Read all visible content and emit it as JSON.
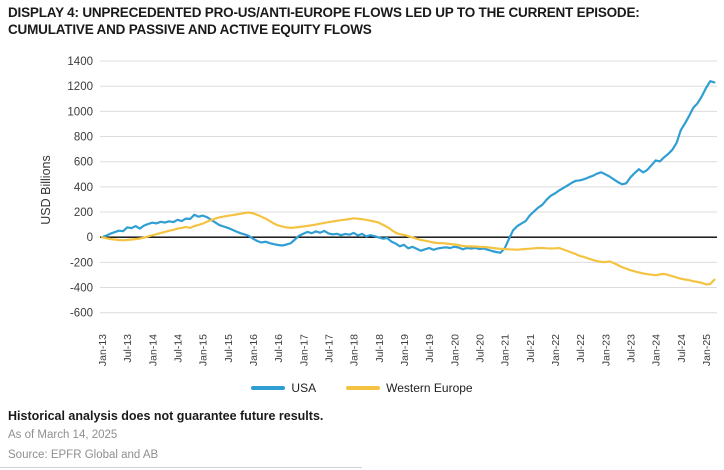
{
  "title_line1": "DISPLAY 4: UNPRECEDENTED PRO-US/ANTI-EUROPE FLOWS LED UP TO THE CURRENT EPISODE:",
  "title_line2": "CUMULATIVE AND PASSIVE AND ACTIVE EQUITY FLOWS",
  "footer": {
    "disclaimer": "Historical analysis does not guarantee future results.",
    "as_of": "As of March 14, 2025",
    "source": "Source: EPFR Global and AB"
  },
  "colors": {
    "usa_line": "#2f9ed2",
    "western_europe_line": "#f5c342",
    "gridline": "#dcdcdc",
    "zero_line": "#000000",
    "axis_text": "#3c3c3c",
    "footer_gray": "#8f8f8f"
  },
  "chart_data": {
    "type": "line",
    "title": "DISPLAY 4: UNPRECEDENTED PRO-US/ANTI-EUROPE FLOWS LED UP TO THE CURRENT EPISODE: CUMULATIVE AND PASSIVE AND ACTIVE EQUITY FLOWS",
    "ylabel": "USD Billions",
    "xlabel": "",
    "ylim": [
      -600,
      1400
    ],
    "y_ticks": [
      1400,
      1200,
      1000,
      800,
      600,
      400,
      200,
      0,
      -200,
      -400,
      -600
    ],
    "grid": "horizontal",
    "zero_line": true,
    "legend_position": "bottom",
    "x_unit": "month",
    "x_start": "Jan-13",
    "x_end": "Mar-25",
    "months_per_tick": 6,
    "x_tick_labels": [
      "Jan-13",
      "Jul-13",
      "Jan-14",
      "Jul-14",
      "Jan-15",
      "Jul-15",
      "Jan-16",
      "Jul-16",
      "Jan-17",
      "Jul-17",
      "Jan-18",
      "Jul-18",
      "Jan-19",
      "Jul-19",
      "Jan-20",
      "Jul-20",
      "Jan-21",
      "Jul-21",
      "Jan-22",
      "Jul-22",
      "Jan-23",
      "Jul-23",
      "Jan-24",
      "Jul-24",
      "Jan-25"
    ],
    "series": [
      {
        "name": "USA",
        "color": "#2f9ed2",
        "values": [
          0,
          12,
          28,
          40,
          52,
          48,
          78,
          72,
          88,
          68,
          92,
          105,
          115,
          110,
          122,
          116,
          126,
          120,
          138,
          128,
          148,
          145,
          178,
          163,
          172,
          160,
          138,
          118,
          96,
          85,
          75,
          60,
          45,
          32,
          22,
          10,
          -12,
          -30,
          -42,
          -36,
          -48,
          -56,
          -62,
          -66,
          -58,
          -48,
          -18,
          12,
          28,
          42,
          32,
          46,
          36,
          50,
          30,
          22,
          27,
          16,
          26,
          20,
          34,
          14,
          26,
          6,
          16,
          8,
          -2,
          -12,
          -6,
          -35,
          -50,
          -72,
          -60,
          -88,
          -76,
          -92,
          -107,
          -96,
          -86,
          -100,
          -90,
          -84,
          -80,
          -86,
          -76,
          -82,
          -96,
          -86,
          -90,
          -85,
          -94,
          -90,
          -100,
          -110,
          -118,
          -124,
          -88,
          -15,
          55,
          88,
          108,
          128,
          173,
          205,
          235,
          258,
          298,
          330,
          348,
          372,
          392,
          412,
          432,
          448,
          452,
          462,
          475,
          488,
          505,
          516,
          500,
          482,
          460,
          438,
          420,
          428,
          476,
          510,
          540,
          515,
          535,
          572,
          610,
          602,
          635,
          662,
          695,
          750,
          850,
          905,
          965,
          1030,
          1065,
          1120,
          1185,
          1240,
          1230
        ]
      },
      {
        "name": "Western Europe",
        "color": "#f5c342",
        "values": [
          0,
          -8,
          -14,
          -18,
          -22,
          -25,
          -22,
          -18,
          -15,
          -10,
          -4,
          6,
          15,
          24,
          33,
          42,
          52,
          58,
          68,
          74,
          82,
          74,
          88,
          98,
          108,
          122,
          136,
          148,
          158,
          164,
          170,
          175,
          180,
          186,
          192,
          196,
          190,
          178,
          163,
          148,
          128,
          108,
          94,
          84,
          78,
          74,
          77,
          81,
          85,
          90,
          95,
          100,
          107,
          114,
          120,
          125,
          130,
          135,
          140,
          145,
          150,
          147,
          143,
          138,
          131,
          124,
          116,
          98,
          82,
          58,
          36,
          24,
          18,
          8,
          -2,
          -12,
          -22,
          -28,
          -35,
          -42,
          -46,
          -48,
          -50,
          -54,
          -58,
          -62,
          -70,
          -72,
          -73,
          -74,
          -76,
          -78,
          -80,
          -85,
          -89,
          -92,
          -94,
          -96,
          -98,
          -99,
          -97,
          -94,
          -91,
          -88,
          -86,
          -86,
          -88,
          -90,
          -88,
          -86,
          -98,
          -110,
          -122,
          -135,
          -150,
          -158,
          -170,
          -180,
          -190,
          -196,
          -198,
          -192,
          -205,
          -222,
          -238,
          -250,
          -262,
          -272,
          -280,
          -288,
          -294,
          -298,
          -302,
          -296,
          -292,
          -300,
          -310,
          -320,
          -330,
          -336,
          -342,
          -350,
          -356,
          -362,
          -375,
          -372,
          -338
        ]
      }
    ]
  }
}
